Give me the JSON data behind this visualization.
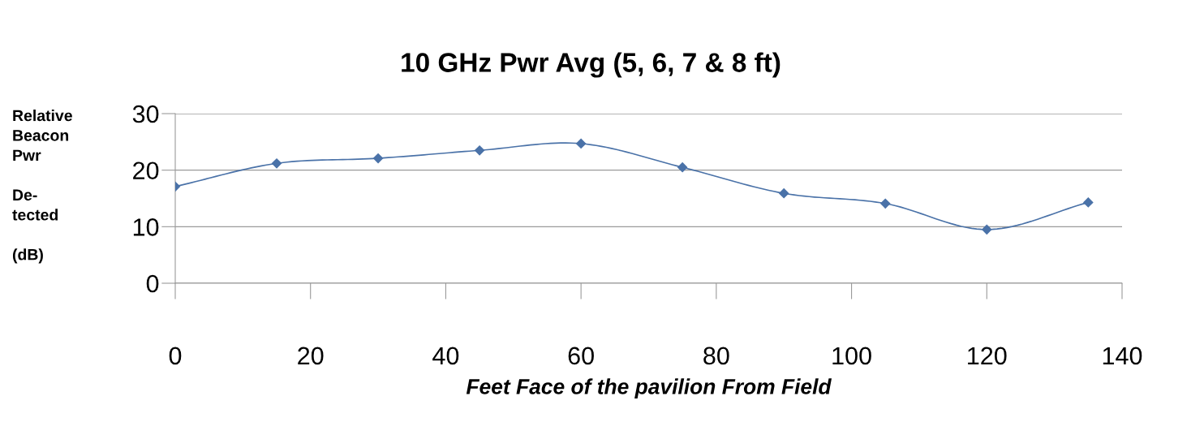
{
  "chart_data": {
    "type": "line",
    "title": "10 GHz Pwr Avg (5, 6, 7 & 8 ft)",
    "xlabel": "Feet Face of the pavilion From Field",
    "ylabel": "Relative\nBeacon\nPwr\n\nDe-\ntected\n\n(dB)",
    "x": [
      0,
      15,
      30,
      45,
      60,
      75,
      90,
      105,
      120,
      135
    ],
    "series": [
      {
        "color": "#4a72a8",
        "values": [
          17.1,
          21.2,
          22.1,
          23.5,
          24.7,
          20.5,
          15.9,
          14.1,
          9.5,
          14.3
        ]
      }
    ],
    "xlim": [
      0,
      140
    ],
    "xticks": [
      0,
      20,
      40,
      60,
      80,
      100,
      120,
      140
    ],
    "ylim": [
      0,
      30
    ],
    "yticks": [
      0,
      10,
      20,
      30
    ],
    "grid": "y",
    "marker": "diamond",
    "line_style": "solid",
    "legend": false
  }
}
